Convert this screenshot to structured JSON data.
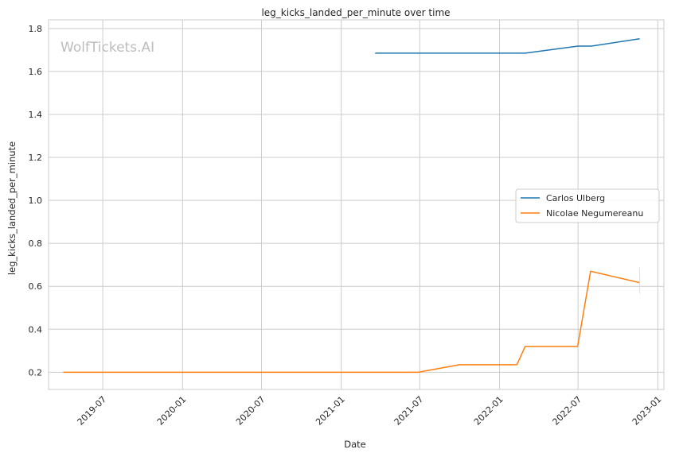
{
  "chart_data": {
    "type": "line",
    "title": "leg_kicks_landed_per_minute over time",
    "xlabel": "Date",
    "ylabel": "leg_kicks_landed_per_minute",
    "watermark": "WolfTickets.AI",
    "x_ticks": [
      "2019-07",
      "2020-01",
      "2020-07",
      "2021-01",
      "2021-07",
      "2022-01",
      "2022-07",
      "2023-01"
    ],
    "x_tick_dates": [
      "2019-07-01",
      "2020-01-01",
      "2020-07-01",
      "2021-01-01",
      "2021-07-01",
      "2022-01-01",
      "2022-07-01",
      "2023-01-01"
    ],
    "xlim": [
      "2019-02-26",
      "2023-01-15"
    ],
    "y_ticks": [
      "0.2",
      "0.4",
      "0.6",
      "0.8",
      "1.0",
      "1.2",
      "1.4",
      "1.6",
      "1.8"
    ],
    "y_tick_values": [
      0.2,
      0.4,
      0.6,
      0.8,
      1.0,
      1.2,
      1.4,
      1.6,
      1.8
    ],
    "ylim": [
      0.12,
      1.84
    ],
    "grid": true,
    "legend_position": "center-right",
    "series": [
      {
        "name": "Carlos Ulberg",
        "color": "#1f77b4",
        "points": [
          {
            "x": "2021-03-20",
            "y": 1.685
          },
          {
            "x": "2022-03-01",
            "y": 1.685
          },
          {
            "x": "2022-07-01",
            "y": 1.718
          },
          {
            "x": "2022-08-01",
            "y": 1.718
          },
          {
            "x": "2022-11-20",
            "y": 1.752
          }
        ]
      },
      {
        "name": "Nicolae Negumereanu",
        "color": "#ff7f0e",
        "points": [
          {
            "x": "2019-04-01",
            "y": 0.2
          },
          {
            "x": "2021-06-27",
            "y": 0.2
          },
          {
            "x": "2021-10-01",
            "y": 0.235
          },
          {
            "x": "2022-02-10",
            "y": 0.235
          },
          {
            "x": "2022-03-01",
            "y": 0.32
          },
          {
            "x": "2022-06-30",
            "y": 0.32
          },
          {
            "x": "2022-07-30",
            "y": 0.67
          },
          {
            "x": "2022-11-20",
            "y": 0.617
          }
        ]
      }
    ]
  }
}
